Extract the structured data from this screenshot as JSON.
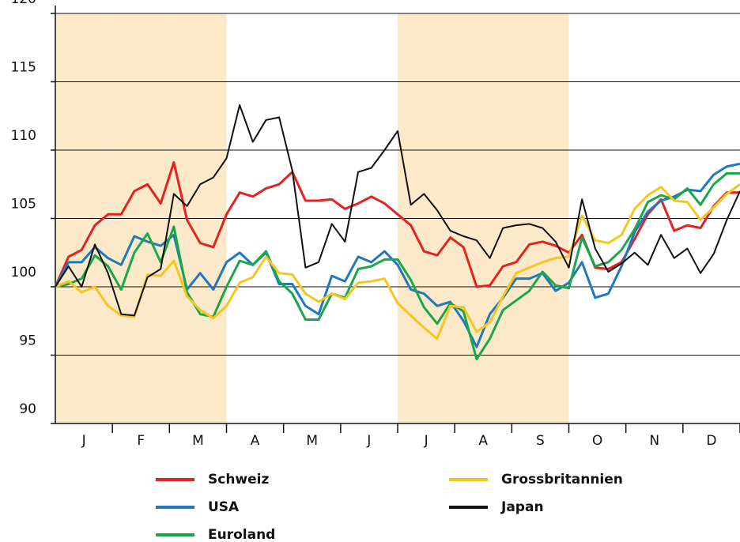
{
  "chart_data": {
    "type": "line",
    "months": [
      "J",
      "F",
      "M",
      "A",
      "M",
      "J",
      "J",
      "A",
      "S",
      "O",
      "N",
      "D"
    ],
    "shaded_months": [
      0,
      1,
      2,
      6,
      7,
      8
    ],
    "xlim": [
      0,
      52
    ],
    "ylim": [
      90,
      120
    ],
    "yticks": [
      90,
      95,
      100,
      105,
      110,
      115,
      120
    ],
    "grid": true,
    "series": [
      {
        "name": "Schweiz",
        "color": "#e32322",
        "values": [
          100,
          102.2,
          102.7,
          104.5,
          105.3,
          105.3,
          107,
          107.5,
          106.1,
          109.1,
          104.9,
          103.2,
          102.9,
          105.3,
          106.9,
          106.6,
          107.2,
          107.5,
          108.4,
          106.3,
          106.3,
          106.4,
          105.7,
          106.1,
          106.6,
          106.1,
          105.3,
          104.5,
          102.6,
          102.3,
          103.6,
          102.9,
          100,
          100.1,
          101.5,
          101.8,
          103.1,
          103.3,
          103.0,
          102.5,
          103.8,
          101.4,
          101.3,
          101.8,
          103.5,
          105.3,
          106.4,
          104.1,
          104.5,
          104.3,
          105.9,
          106.9,
          106.9
        ]
      },
      {
        "name": "USA",
        "color": "#1f78c0",
        "values": [
          100,
          101.8,
          101.8,
          102.9,
          102.1,
          101.6,
          103.7,
          103.3,
          103.0,
          103.8,
          99.8,
          101.0,
          99.8,
          101.8,
          102.5,
          101.6,
          102.5,
          100.2,
          100.2,
          98.6,
          98.0,
          100.8,
          100.4,
          102.2,
          101.8,
          102.6,
          101.6,
          99.8,
          99.5,
          98.6,
          98.9,
          97.5,
          95.6,
          98.0,
          99.2,
          100.6,
          100.6,
          101.0,
          99.7,
          100.3,
          101.8,
          99.2,
          99.5,
          101.5,
          104.0,
          105.5,
          106.3,
          106.6,
          107.1,
          107.0,
          108.2,
          108.8,
          109.0
        ]
      },
      {
        "name": "Euroland",
        "color": "#1aa64a",
        "values": [
          100,
          100.2,
          100.6,
          102.3,
          101.5,
          99.8,
          102.5,
          103.9,
          101.8,
          104.4,
          99.6,
          98.0,
          97.8,
          100.0,
          101.9,
          101.6,
          102.6,
          100.4,
          99.5,
          97.6,
          97.6,
          99.5,
          99.2,
          101.3,
          101.5,
          102.0,
          102.0,
          100.5,
          98.5,
          97.3,
          98.8,
          98.2,
          94.7,
          96.2,
          98.3,
          99.0,
          99.7,
          101.1,
          100.1,
          99.9,
          103.6,
          101.5,
          101.8,
          102.7,
          104.2,
          106.2,
          106.7,
          106.4,
          107.2,
          106.0,
          107.5,
          108.3,
          108.3
        ]
      },
      {
        "name": "Grossbritannien",
        "color": "#f7c51f",
        "values": [
          100,
          100.4,
          99.6,
          100.0,
          98.6,
          97.9,
          97.8,
          100.9,
          100.8,
          101.9,
          99.3,
          98.3,
          97.7,
          98.6,
          100.3,
          100.7,
          102.2,
          101.0,
          100.9,
          99.5,
          98.9,
          99.5,
          99.1,
          100.3,
          100.4,
          100.6,
          98.8,
          97.9,
          97.0,
          96.2,
          98.6,
          98.5,
          96.7,
          97.4,
          99.3,
          101.0,
          101.4,
          101.8,
          102.1,
          102.2,
          105.2,
          103.4,
          103.2,
          103.8,
          105.7,
          106.7,
          107.3,
          106.3,
          106.2,
          104.9,
          105.8,
          106.8,
          107.5
        ]
      },
      {
        "name": "Japan",
        "color": "#111111",
        "values": [
          100,
          101.5,
          100.0,
          103.1,
          101.0,
          98.0,
          97.9,
          100.7,
          101.3,
          106.8,
          105.9,
          107.5,
          108.0,
          109.4,
          113.3,
          110.6,
          112.2,
          112.4,
          108.5,
          101.4,
          101.8,
          104.6,
          103.3,
          108.4,
          108.7,
          110.0,
          111.4,
          106.0,
          106.8,
          105.6,
          104.1,
          103.7,
          103.4,
          102.1,
          104.3,
          104.5,
          104.6,
          104.3,
          103.3,
          101.4,
          106.4,
          102.8,
          101.1,
          101.7,
          102.5,
          101.6,
          103.8,
          102.1,
          102.8,
          101.0,
          102.4,
          104.9,
          107.0
        ]
      }
    ]
  }
}
